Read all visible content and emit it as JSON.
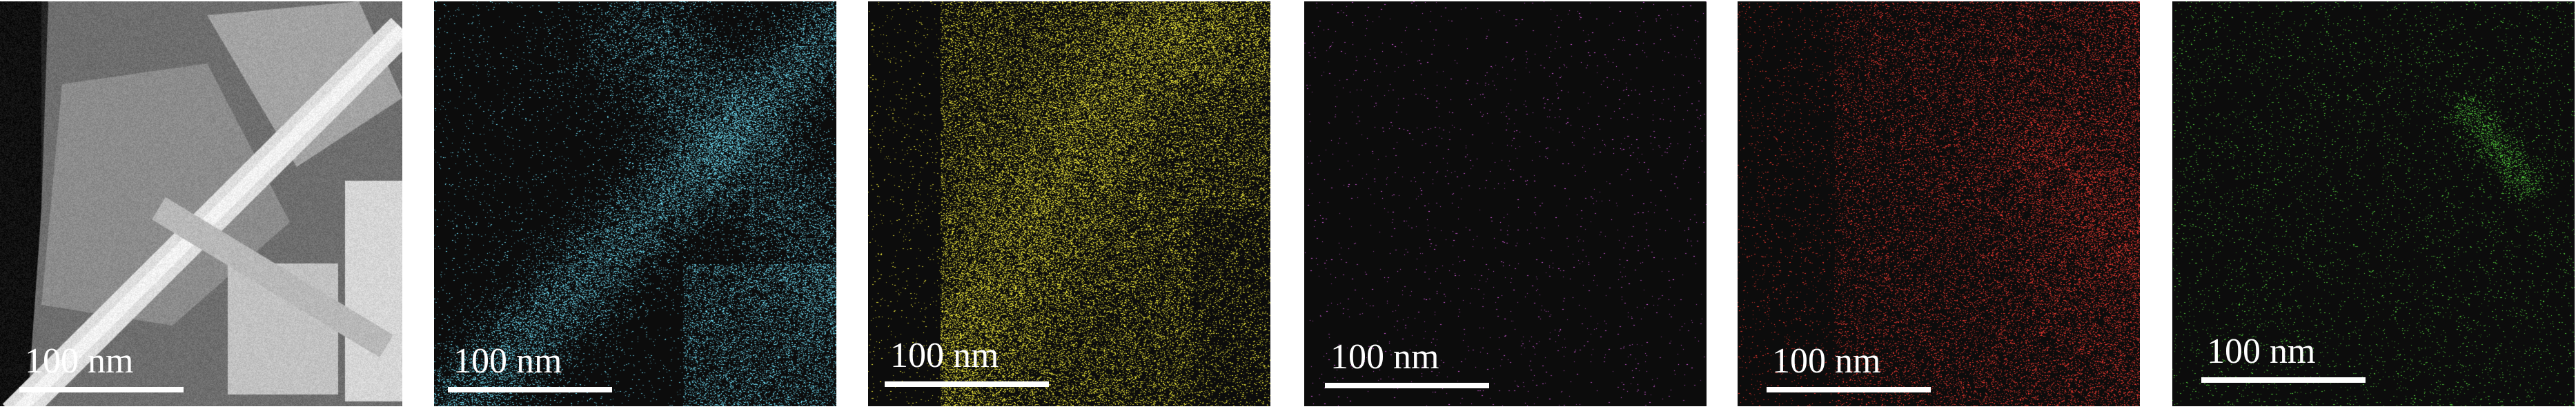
{
  "figure": {
    "panels": [
      {
        "id": "haadf",
        "kind": "grayscale-micrograph",
        "color": "#d8d8d8",
        "scale_label": "100 nm"
      },
      {
        "id": "map-1",
        "kind": "element-map",
        "color": "#5fd4ee",
        "scale_label": "100 nm"
      },
      {
        "id": "map-2",
        "kind": "element-map",
        "color": "#f2ea2a",
        "scale_label": "100 nm"
      },
      {
        "id": "map-3",
        "kind": "element-map",
        "color": "#d84fe0",
        "scale_label": "100 nm"
      },
      {
        "id": "map-4",
        "kind": "element-map",
        "color": "#e8261c",
        "scale_label": "100 nm"
      },
      {
        "id": "map-5",
        "kind": "element-map",
        "color": "#43c92a",
        "scale_label": "100 nm"
      }
    ]
  }
}
